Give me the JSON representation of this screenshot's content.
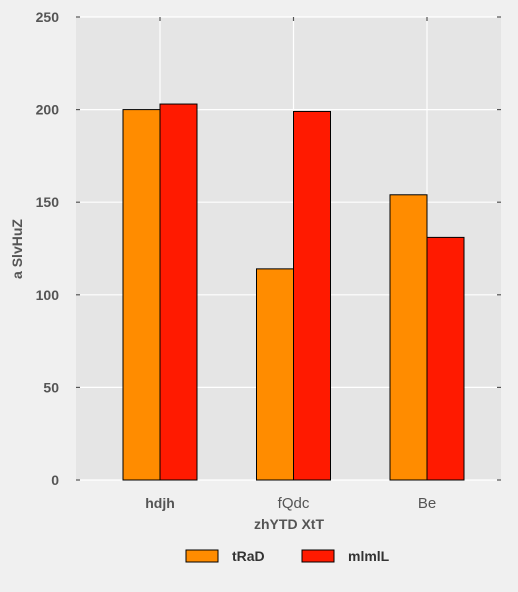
{
  "chart_data": {
    "type": "bar",
    "categories": [
      "hdjh",
      "fQdc",
      "Be"
    ],
    "series": [
      {
        "name": "tRaD",
        "values": [
          200,
          114,
          154
        ],
        "color": "#ff8c00"
      },
      {
        "name": "mlmlL",
        "values": [
          203,
          199,
          131
        ],
        "color": "#ff1a00"
      }
    ],
    "xlabel": "zhYTD XtT",
    "ylabel": "a SlvHuZ",
    "ylim": [
      0,
      250
    ],
    "yticks": [
      0,
      50,
      100,
      150,
      200,
      250
    ],
    "grid": true,
    "legend_placement": "bottom-center",
    "plot_background": "#e5e5e5",
    "grid_color": "#ffffff"
  }
}
